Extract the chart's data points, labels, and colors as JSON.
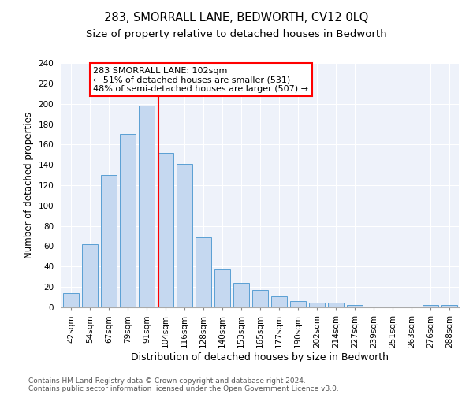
{
  "title1": "283, SMORRALL LANE, BEDWORTH, CV12 0LQ",
  "title2": "Size of property relative to detached houses in Bedworth",
  "xlabel": "Distribution of detached houses by size in Bedworth",
  "ylabel": "Number of detached properties",
  "footnote1": "Contains HM Land Registry data © Crown copyright and database right 2024.",
  "footnote2": "Contains public sector information licensed under the Open Government Licence v3.0.",
  "bin_labels": [
    "42sqm",
    "54sqm",
    "67sqm",
    "79sqm",
    "91sqm",
    "104sqm",
    "116sqm",
    "128sqm",
    "140sqm",
    "153sqm",
    "165sqm",
    "177sqm",
    "190sqm",
    "202sqm",
    "214sqm",
    "227sqm",
    "239sqm",
    "251sqm",
    "263sqm",
    "276sqm",
    "288sqm"
  ],
  "bar_heights": [
    14,
    62,
    130,
    170,
    198,
    152,
    141,
    69,
    37,
    24,
    17,
    11,
    6,
    5,
    5,
    2,
    0,
    1,
    0,
    2,
    2
  ],
  "bar_color": "#c5d8f0",
  "bar_edgecolor": "#5a9fd4",
  "property_line_x": 4.62,
  "annotation_text": "283 SMORRALL LANE: 102sqm\n← 51% of detached houses are smaller (531)\n48% of semi-detached houses are larger (507) →",
  "annotation_box_color": "white",
  "annotation_box_edgecolor": "red",
  "vline_color": "red",
  "ylim": [
    0,
    240
  ],
  "yticks": [
    0,
    20,
    40,
    60,
    80,
    100,
    120,
    140,
    160,
    180,
    200,
    220,
    240
  ],
  "background_color": "#eef2fa",
  "title1_fontsize": 10.5,
  "title2_fontsize": 9.5,
  "xlabel_fontsize": 9,
  "ylabel_fontsize": 8.5,
  "tick_fontsize": 7.5,
  "annotation_fontsize": 8,
  "footnote_fontsize": 6.5
}
